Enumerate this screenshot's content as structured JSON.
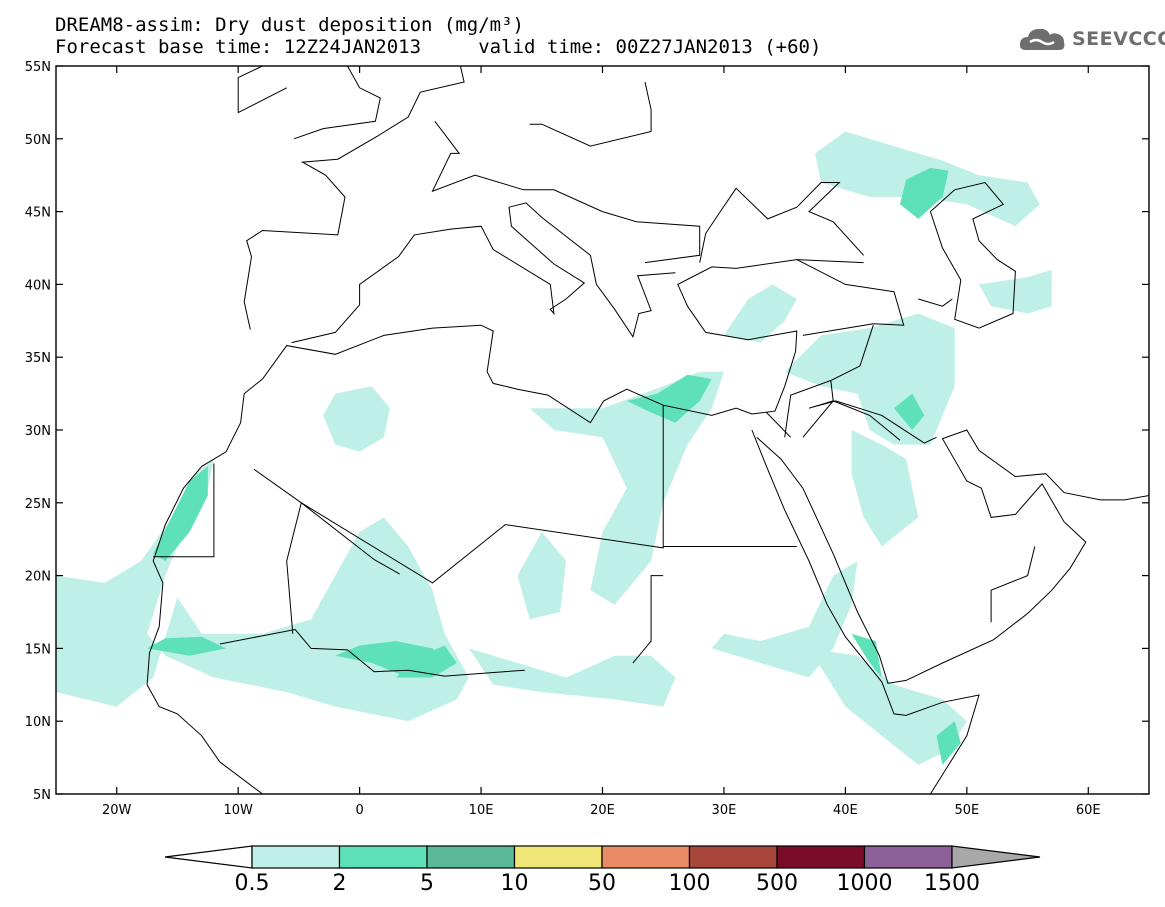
{
  "header": {
    "title_line1": "DREAM8-assim: Dry dust deposition (mg/m³)",
    "title_line2": "Forecast base time: 12Z24JAN2013     valid time: 00Z27JAN2013 (+60)"
  },
  "logo": {
    "text": "SEEVCCC",
    "icon": "cloud-icon",
    "color": "#6e6e6e"
  },
  "map": {
    "lon_range": [
      -25,
      65
    ],
    "lat_range": [
      5,
      55
    ],
    "lat_ticks": [
      {
        "value": 55,
        "label": "55N"
      },
      {
        "value": 50,
        "label": "50N"
      },
      {
        "value": 45,
        "label": "45N"
      },
      {
        "value": 40,
        "label": "40N"
      },
      {
        "value": 35,
        "label": "35N"
      },
      {
        "value": 30,
        "label": "30N"
      },
      {
        "value": 25,
        "label": "25N"
      },
      {
        "value": 20,
        "label": "20N"
      },
      {
        "value": 15,
        "label": "15N"
      },
      {
        "value": 10,
        "label": "10N"
      },
      {
        "value": 5,
        "label": "5N"
      }
    ],
    "lon_ticks": [
      {
        "value": -20,
        "label": "20W"
      },
      {
        "value": -10,
        "label": "10W"
      },
      {
        "value": 0,
        "label": "0"
      },
      {
        "value": 10,
        "label": "10E"
      },
      {
        "value": 20,
        "label": "20E"
      },
      {
        "value": 30,
        "label": "30E"
      },
      {
        "value": 40,
        "label": "40E"
      },
      {
        "value": 50,
        "label": "50E"
      },
      {
        "value": 60,
        "label": "60E"
      }
    ]
  },
  "legend": {
    "labels": [
      "0.5",
      "2",
      "5",
      "10",
      "50",
      "100",
      "500",
      "1000",
      "1500"
    ],
    "colors": [
      "#bff0e8",
      "#5ee0b8",
      "#5bb898",
      "#f0e678",
      "#e88c68",
      "#a8483c",
      "#7a0c28",
      "#8c6098"
    ],
    "under_color": "#ffffff",
    "over_color": "#a8a8a8"
  }
}
